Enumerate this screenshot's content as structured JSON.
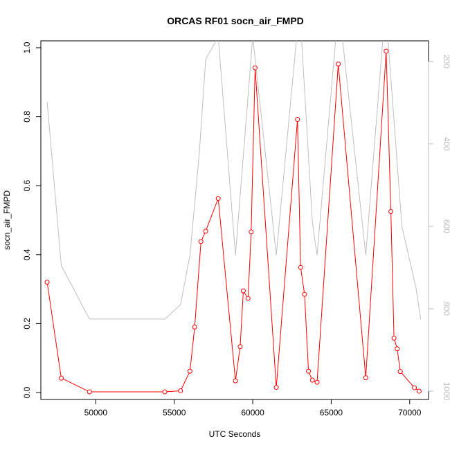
{
  "chart_data": {
    "type": "line",
    "title": "ORCAS RF01 socn_air_FMPD",
    "xlabel": "UTC Seconds",
    "ylabel": "socn_air_FMPD",
    "xlim": [
      46500,
      71200
    ],
    "ylim": [
      -0.02,
      1.02
    ],
    "x_ticks": [
      50000,
      55000,
      60000,
      65000,
      70000
    ],
    "y_ticks": [
      0.0,
      0.2,
      0.4,
      0.6,
      0.8,
      1.0
    ],
    "y_tick_labels": [
      "0.0",
      "0.2",
      "0.4",
      "0.6",
      "0.8",
      "1.0"
    ],
    "y2lim": [
      1020,
      150
    ],
    "y2_ticks": [
      200,
      400,
      600,
      800,
      1000
    ],
    "y2_tick_labels": [
      "200",
      "400",
      "600",
      "800",
      "1000"
    ],
    "grid": false,
    "series": [
      {
        "color": "#ff0000",
        "marker": "open-circle",
        "axis": "left",
        "x": [
          46900,
          47800,
          49600,
          54400,
          55400,
          56000,
          56300,
          56700,
          57000,
          57800,
          58900,
          59200,
          59400,
          59700,
          59900,
          60150,
          61500,
          62850,
          63050,
          63300,
          63550,
          63800,
          64100,
          65450,
          67200,
          68500,
          68800,
          69000,
          69200,
          69400,
          70300,
          70600
        ],
        "values": [
          0.32,
          0.042,
          0.002,
          0.002,
          0.005,
          0.062,
          0.19,
          0.438,
          0.468,
          0.563,
          0.034,
          0.133,
          0.295,
          0.273,
          0.466,
          0.942,
          0.015,
          0.792,
          0.363,
          0.285,
          0.062,
          0.036,
          0.03,
          0.953,
          0.043,
          0.99,
          0.525,
          0.158,
          0.127,
          0.061,
          0.014,
          0.004
        ]
      },
      {
        "color": "#bebebe",
        "marker": "none",
        "axis": "right",
        "x": [
          46900,
          47800,
          49600,
          54400,
          55400,
          56000,
          56600,
          57000,
          57800,
          58900,
          60000,
          61500,
          62800,
          63100,
          63800,
          64100,
          65300,
          65700,
          67200,
          68300,
          68600,
          69500,
          70400,
          70700
        ],
        "values": [
          298,
          695,
          825,
          825,
          790,
          670,
          420,
          195,
          140,
          670,
          140,
          670,
          140,
          140,
          590,
          670,
          140,
          140,
          670,
          140,
          140,
          600,
          750,
          825
        ]
      }
    ]
  }
}
